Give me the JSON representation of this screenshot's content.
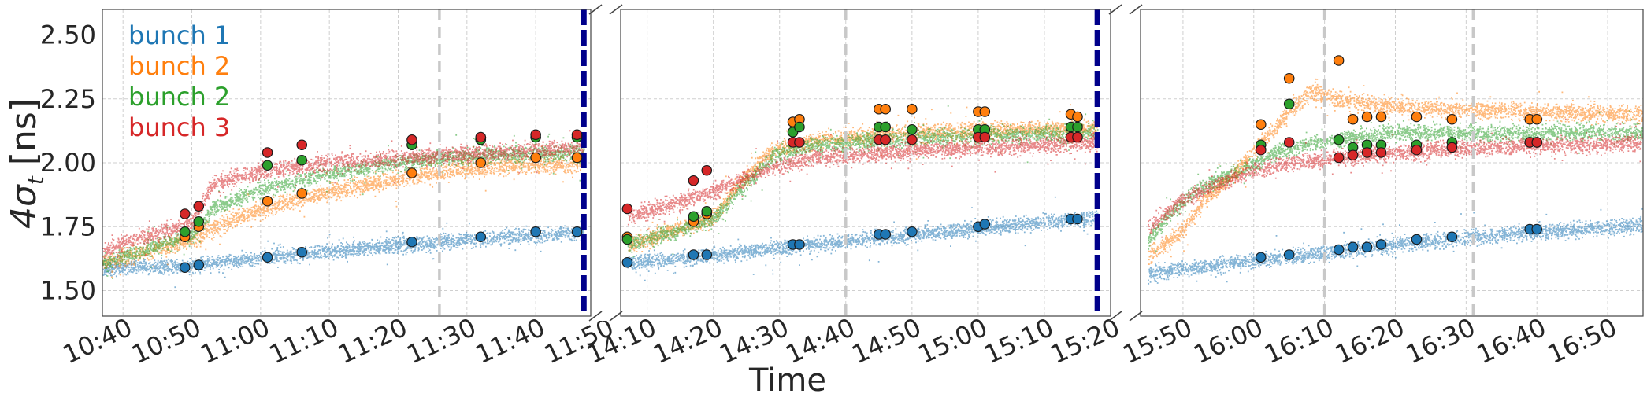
{
  "chart_data": {
    "type": "scatter",
    "xlabel": "Time",
    "ylabel": "4σ",
    "ylabel_subscript": "t",
    "ylabel_unit": " [ns]",
    "ylim": [
      1.4,
      2.6
    ],
    "yticks": [
      1.5,
      1.75,
      2.0,
      2.25,
      2.5
    ],
    "ytick_labels": [
      "1.50",
      "1.75",
      "2.00",
      "2.25",
      "2.50"
    ],
    "grid": true,
    "broken_x_axis": true,
    "legend": {
      "placement": "top-left",
      "entries": [
        {
          "label": "bunch 1",
          "color": "#1f77b4"
        },
        {
          "label": "bunch 2",
          "color": "#ff7f0e"
        },
        {
          "label": "bunch 2",
          "color": "#2ca02c"
        },
        {
          "label": "bunch 3",
          "color": "#d62728"
        }
      ]
    },
    "colors": {
      "blue": "#1f77b4",
      "orange": "#ff7f0e",
      "green": "#2ca02c",
      "red": "#d62728",
      "marker_line": "#dc143c",
      "dashed_gray": "#c8c8c8",
      "navy": "#00008b"
    },
    "panels": [
      {
        "xlim": [
          "10:37",
          "11:48"
        ],
        "xticks": [
          "10:40",
          "10:50",
          "11:00",
          "11:10",
          "11:20",
          "11:30",
          "11:40",
          "11:50"
        ],
        "gray_vlines": [
          "11:26"
        ],
        "navy_vline": "11:47",
        "bands": {
          "blue": [
            [
              "10:37",
              1.59
            ],
            [
              "10:50",
              1.6
            ],
            [
              "11:00",
              1.63
            ],
            [
              "11:20",
              1.68
            ],
            [
              "11:40",
              1.72
            ],
            [
              "11:47",
              1.73
            ]
          ],
          "orange": [
            [
              "10:37",
              1.61
            ],
            [
              "10:50",
              1.7
            ],
            [
              "10:55",
              1.77
            ],
            [
              "11:00",
              1.82
            ],
            [
              "11:10",
              1.89
            ],
            [
              "11:20",
              1.94
            ],
            [
              "11:30",
              1.98
            ],
            [
              "11:47",
              2.0
            ]
          ],
          "green": [
            [
              "10:37",
              1.61
            ],
            [
              "10:50",
              1.72
            ],
            [
              "10:53",
              1.82
            ],
            [
              "11:00",
              1.9
            ],
            [
              "11:10",
              1.96
            ],
            [
              "11:20",
              2.0
            ],
            [
              "11:30",
              2.03
            ],
            [
              "11:47",
              2.04
            ]
          ],
          "red": [
            [
              "10:37",
              1.66
            ],
            [
              "10:50",
              1.77
            ],
            [
              "10:53",
              1.92
            ],
            [
              "11:00",
              1.97
            ],
            [
              "11:10",
              2.0
            ],
            [
              "11:20",
              2.02
            ],
            [
              "11:47",
              2.06
            ]
          ]
        },
        "markers": [
          {
            "series": "blue",
            "x": [
              "10:49",
              "10:51",
              "11:01",
              "11:06",
              "11:22",
              "11:32",
              "11:40",
              "11:46"
            ],
            "y": [
              1.59,
              1.6,
              1.63,
              1.65,
              1.69,
              1.71,
              1.73,
              1.73
            ]
          },
          {
            "series": "orange",
            "x": [
              "10:49",
              "10:51",
              "11:01",
              "11:06",
              "11:22",
              "11:32",
              "11:40",
              "11:46"
            ],
            "y": [
              1.71,
              1.75,
              1.85,
              1.88,
              1.96,
              2.0,
              2.02,
              2.02
            ]
          },
          {
            "series": "green",
            "x": [
              "10:49",
              "10:51",
              "11:01",
              "11:06",
              "11:22",
              "11:32",
              "11:40",
              "11:46"
            ],
            "y": [
              1.73,
              1.77,
              1.99,
              2.01,
              2.07,
              2.09,
              2.1,
              2.1
            ]
          },
          {
            "series": "red",
            "x": [
              "10:49",
              "10:51",
              "11:01",
              "11:06",
              "11:22",
              "11:32",
              "11:40",
              "11:46"
            ],
            "y": [
              1.8,
              1.83,
              2.04,
              2.07,
              2.09,
              2.1,
              2.11,
              2.11
            ]
          }
        ]
      },
      {
        "xlim": [
          "14:06",
          "15:20"
        ],
        "xticks": [
          "14:10",
          "14:20",
          "14:30",
          "14:40",
          "14:50",
          "15:00",
          "15:10",
          "15:20"
        ],
        "gray_vlines": [
          "14:40"
        ],
        "navy_vline": "15:18",
        "bands": {
          "blue": [
            [
              "14:07",
              1.61
            ],
            [
              "14:20",
              1.64
            ],
            [
              "14:30",
              1.67
            ],
            [
              "14:50",
              1.72
            ],
            [
              "15:10",
              1.77
            ],
            [
              "15:18",
              1.79
            ]
          ],
          "orange": [
            [
              "14:07",
              1.68
            ],
            [
              "14:20",
              1.79
            ],
            [
              "14:24",
              1.93
            ],
            [
              "14:29",
              2.05
            ],
            [
              "14:35",
              2.09
            ],
            [
              "14:50",
              2.12
            ],
            [
              "15:18",
              2.14
            ]
          ],
          "green": [
            [
              "14:07",
              1.68
            ],
            [
              "14:20",
              1.78
            ],
            [
              "14:24",
              1.9
            ],
            [
              "14:29",
              2.03
            ],
            [
              "14:35",
              2.07
            ],
            [
              "14:50",
              2.1
            ],
            [
              "15:18",
              2.12
            ]
          ],
          "red": [
            [
              "14:07",
              1.79
            ],
            [
              "14:20",
              1.89
            ],
            [
              "14:28",
              1.98
            ],
            [
              "14:35",
              2.02
            ],
            [
              "14:50",
              2.05
            ],
            [
              "15:18",
              2.08
            ]
          ]
        },
        "markers": [
          {
            "series": "blue",
            "x": [
              "14:07",
              "14:17",
              "14:19",
              "14:32",
              "14:33",
              "14:45",
              "14:46",
              "14:50",
              "15:00",
              "15:01",
              "15:14",
              "15:15"
            ],
            "y": [
              1.61,
              1.64,
              1.64,
              1.68,
              1.68,
              1.72,
              1.72,
              1.73,
              1.75,
              1.76,
              1.78,
              1.78
            ]
          },
          {
            "series": "orange",
            "x": [
              "14:07",
              "14:17",
              "14:19",
              "14:32",
              "14:33",
              "14:45",
              "14:46",
              "14:50",
              "15:00",
              "15:01",
              "15:14",
              "15:15"
            ],
            "y": [
              1.71,
              1.77,
              1.8,
              2.16,
              2.17,
              2.21,
              2.21,
              2.21,
              2.2,
              2.2,
              2.19,
              2.18
            ]
          },
          {
            "series": "green",
            "x": [
              "14:07",
              "14:17",
              "14:19",
              "14:32",
              "14:33",
              "14:45",
              "14:46",
              "14:50",
              "15:00",
              "15:01",
              "15:14",
              "15:15"
            ],
            "y": [
              1.7,
              1.79,
              1.81,
              2.12,
              2.14,
              2.14,
              2.14,
              2.13,
              2.13,
              2.13,
              2.14,
              2.14
            ]
          },
          {
            "series": "red",
            "x": [
              "14:07",
              "14:17",
              "14:19",
              "14:32",
              "14:33",
              "14:45",
              "14:46",
              "14:50",
              "15:00",
              "15:01",
              "15:14",
              "15:15"
            ],
            "y": [
              1.82,
              1.93,
              1.97,
              2.08,
              2.08,
              2.09,
              2.09,
              2.09,
              2.1,
              2.1,
              2.1,
              2.1
            ]
          }
        ]
      },
      {
        "xlim": [
          "15:44",
          "16:55"
        ],
        "xticks": [
          "15:50",
          "16:00",
          "16:10",
          "16:20",
          "16:30",
          "16:40",
          "16:50"
        ],
        "gray_vlines": [
          "16:10",
          "16:31"
        ],
        "navy_vline": null,
        "bands": {
          "blue": [
            [
              "15:45",
              1.57
            ],
            [
              "16:00",
              1.62
            ],
            [
              "16:10",
              1.65
            ],
            [
              "16:20",
              1.68
            ],
            [
              "16:30",
              1.71
            ],
            [
              "16:40",
              1.73
            ],
            [
              "16:55",
              1.76
            ]
          ],
          "orange": [
            [
              "15:45",
              1.63
            ],
            [
              "15:50",
              1.74
            ],
            [
              "15:53",
              1.86
            ],
            [
              "15:57",
              1.95
            ],
            [
              "16:00",
              2.05
            ],
            [
              "16:05",
              2.2
            ],
            [
              "16:08",
              2.28
            ],
            [
              "16:12",
              2.25
            ],
            [
              "16:20",
              2.22
            ],
            [
              "16:30",
              2.21
            ],
            [
              "16:55",
              2.19
            ]
          ],
          "green": [
            [
              "15:45",
              1.69
            ],
            [
              "15:48",
              1.8
            ],
            [
              "15:52",
              1.9
            ],
            [
              "15:58",
              1.97
            ],
            [
              "16:03",
              2.04
            ],
            [
              "16:08",
              2.08
            ],
            [
              "16:20",
              2.12
            ],
            [
              "16:55",
              2.12
            ]
          ],
          "red": [
            [
              "15:45",
              1.75
            ],
            [
              "15:50",
              1.86
            ],
            [
              "15:55",
              1.92
            ],
            [
              "16:00",
              1.97
            ],
            [
              "16:05",
              2.0
            ],
            [
              "16:15",
              2.03
            ],
            [
              "16:30",
              2.06
            ],
            [
              "16:55",
              2.08
            ]
          ]
        },
        "markers": [
          {
            "series": "blue",
            "x": [
              "16:01",
              "16:05",
              "16:12",
              "16:14",
              "16:16",
              "16:18",
              "16:23",
              "16:28",
              "16:39",
              "16:40"
            ],
            "y": [
              1.63,
              1.64,
              1.66,
              1.67,
              1.67,
              1.68,
              1.7,
              1.71,
              1.74,
              1.74
            ]
          },
          {
            "series": "orange",
            "x": [
              "16:01",
              "16:05",
              "16:12",
              "16:14",
              "16:16",
              "16:18",
              "16:23",
              "16:28",
              "16:39",
              "16:40"
            ],
            "y": [
              2.15,
              2.33,
              2.4,
              2.17,
              2.18,
              2.18,
              2.18,
              2.17,
              2.17,
              2.17
            ]
          },
          {
            "series": "green",
            "x": [
              "16:01",
              "16:05",
              "16:12",
              "16:14",
              "16:16",
              "16:18",
              "16:23",
              "16:28",
              "16:39",
              "16:40"
            ],
            "y": [
              2.07,
              2.23,
              2.09,
              2.06,
              2.07,
              2.07,
              2.07,
              2.08,
              2.08,
              2.08
            ]
          },
          {
            "series": "red",
            "x": [
              "16:01",
              "16:05",
              "16:12",
              "16:14",
              "16:16",
              "16:18",
              "16:23",
              "16:28",
              "16:39",
              "16:40"
            ],
            "y": [
              2.05,
              2.08,
              2.02,
              2.03,
              2.04,
              2.04,
              2.05,
              2.06,
              2.08,
              2.08
            ]
          }
        ]
      }
    ]
  }
}
